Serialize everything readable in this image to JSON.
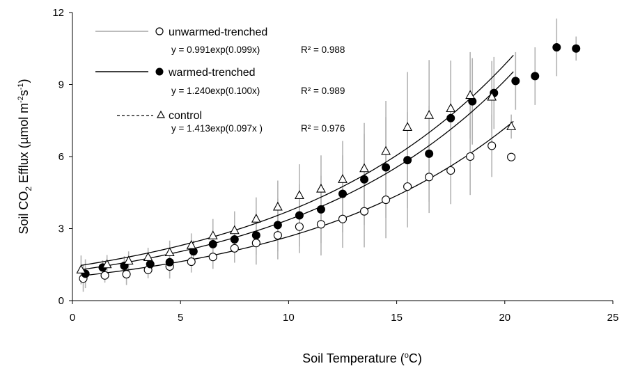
{
  "chart_data": {
    "type": "scatter",
    "xlabel": "Soil Temperature (oC)",
    "xlabel_parts": {
      "pre": "Soil Temperature (",
      "sup": "o",
      "post": "C)"
    },
    "ylabel": "Soil CO2 Efflux (µmol m-2s-1)",
    "ylabel_parts": {
      "pre": "Soil CO",
      "sub": "2",
      "mid": " Efflux (µmol m",
      "sup1": "-2",
      "s": "s",
      "sup2": "-1",
      "post": ")"
    },
    "xlim": [
      0,
      25
    ],
    "ylim": [
      0,
      12
    ],
    "xticks": [
      0,
      5,
      10,
      15,
      20,
      25
    ],
    "yticks": [
      0,
      3,
      6,
      9,
      12
    ],
    "grid": false,
    "legend_position": "top-left",
    "series": [
      {
        "name": "unwarmed-trenched",
        "equation": "y = 0.991exp(0.099x)",
        "r2": "R² = 0.988",
        "marker": "open-circle",
        "legend_line": "gray",
        "fit": {
          "a": 0.991,
          "b": 0.099,
          "xmin": 0.4,
          "xmax": 20.4
        },
        "points": [
          {
            "x": 0.5,
            "y": 0.92,
            "err": 0.55
          },
          {
            "x": 1.5,
            "y": 1.05,
            "err": 0.3
          },
          {
            "x": 2.5,
            "y": 1.1,
            "err": 0.45
          },
          {
            "x": 3.5,
            "y": 1.28,
            "err": 0.35
          },
          {
            "x": 4.5,
            "y": 1.42,
            "err": 0.5
          },
          {
            "x": 5.5,
            "y": 1.62,
            "err": 0.45
          },
          {
            "x": 6.5,
            "y": 1.82,
            "err": 0.5
          },
          {
            "x": 7.5,
            "y": 2.18,
            "err": 0.6
          },
          {
            "x": 8.5,
            "y": 2.4,
            "err": 0.9
          },
          {
            "x": 9.5,
            "y": 2.72,
            "err": 1.0
          },
          {
            "x": 10.5,
            "y": 3.08,
            "err": 1.1
          },
          {
            "x": 11.5,
            "y": 3.18,
            "err": 1.3
          },
          {
            "x": 12.5,
            "y": 3.4,
            "err": 1.2
          },
          {
            "x": 13.5,
            "y": 3.72,
            "err": 1.5
          },
          {
            "x": 14.5,
            "y": 4.2,
            "err": 1.6
          },
          {
            "x": 15.5,
            "y": 4.75,
            "err": 1.7
          },
          {
            "x": 16.5,
            "y": 5.15,
            "err": 1.5
          },
          {
            "x": 17.5,
            "y": 5.42,
            "err": 1.4
          },
          {
            "x": 18.4,
            "y": 6.0,
            "err": 1.6
          },
          {
            "x": 19.4,
            "y": 6.45,
            "err": 1.3
          },
          {
            "x": 20.3,
            "y": 5.98,
            "err": 0.0
          }
        ]
      },
      {
        "name": "warmed-trenched",
        "equation": "y = 1.240exp(0.100x)",
        "r2": "R² = 0.989",
        "marker": "filled-circle",
        "legend_line": "black",
        "fit": {
          "a": 1.24,
          "b": 0.1,
          "xmin": 0.4,
          "xmax": 20.4
        },
        "points": [
          {
            "x": 0.6,
            "y": 1.12,
            "err": 0.6
          },
          {
            "x": 1.4,
            "y": 1.38,
            "err": 0.3
          },
          {
            "x": 2.4,
            "y": 1.45,
            "err": 0.4
          },
          {
            "x": 3.6,
            "y": 1.52,
            "err": 0.35
          },
          {
            "x": 4.5,
            "y": 1.6,
            "err": 0.4
          },
          {
            "x": 5.6,
            "y": 2.05,
            "err": 0.45
          },
          {
            "x": 6.5,
            "y": 2.35,
            "err": 0.5
          },
          {
            "x": 7.5,
            "y": 2.55,
            "err": 0.6
          },
          {
            "x": 8.5,
            "y": 2.72,
            "err": 0.8
          },
          {
            "x": 9.5,
            "y": 3.15,
            "err": 1.1
          },
          {
            "x": 10.5,
            "y": 3.55,
            "err": 1.3
          },
          {
            "x": 11.5,
            "y": 3.8,
            "err": 1.4
          },
          {
            "x": 12.5,
            "y": 4.45,
            "err": 1.6
          },
          {
            "x": 13.5,
            "y": 5.05,
            "err": 1.9
          },
          {
            "x": 14.5,
            "y": 5.55,
            "err": 2.1
          },
          {
            "x": 15.5,
            "y": 5.85,
            "err": 2.0
          },
          {
            "x": 16.5,
            "y": 6.12,
            "err": 2.0
          },
          {
            "x": 17.5,
            "y": 7.6,
            "err": 2.0
          },
          {
            "x": 18.5,
            "y": 8.3,
            "err": 1.8
          },
          {
            "x": 19.5,
            "y": 8.65,
            "err": 1.5
          },
          {
            "x": 20.5,
            "y": 9.15,
            "err": 1.2
          },
          {
            "x": 21.4,
            "y": 9.35,
            "err": 1.2
          },
          {
            "x": 22.4,
            "y": 10.55,
            "err": 1.2
          },
          {
            "x": 23.3,
            "y": 10.5,
            "err": 0.5
          }
        ]
      },
      {
        "name": "control",
        "equation": "y = 1.413exp(0.097x )",
        "r2": "R² = 0.976",
        "marker": "open-triangle",
        "legend_line": "dashed",
        "fit": {
          "a": 1.413,
          "b": 0.097,
          "xmin": 0.4,
          "xmax": 20.4
        },
        "points": [
          {
            "x": 0.4,
            "y": 1.28,
            "err": 0.6
          },
          {
            "x": 1.6,
            "y": 1.5,
            "err": 0.4
          },
          {
            "x": 2.6,
            "y": 1.65,
            "err": 0.4
          },
          {
            "x": 3.5,
            "y": 1.8,
            "err": 0.4
          },
          {
            "x": 4.5,
            "y": 2.0,
            "err": 0.5
          },
          {
            "x": 5.5,
            "y": 2.3,
            "err": 0.5
          },
          {
            "x": 6.5,
            "y": 2.7,
            "err": 0.7
          },
          {
            "x": 7.5,
            "y": 2.92,
            "err": 0.8
          },
          {
            "x": 8.5,
            "y": 3.4,
            "err": 0.9
          },
          {
            "x": 9.5,
            "y": 3.9,
            "err": 1.1
          },
          {
            "x": 10.5,
            "y": 4.38,
            "err": 1.3
          },
          {
            "x": 11.5,
            "y": 4.65,
            "err": 1.4
          },
          {
            "x": 12.5,
            "y": 5.05,
            "err": 1.6
          },
          {
            "x": 13.5,
            "y": 5.5,
            "err": 1.9
          },
          {
            "x": 14.5,
            "y": 6.22,
            "err": 2.1
          },
          {
            "x": 15.5,
            "y": 7.22,
            "err": 2.3
          },
          {
            "x": 16.5,
            "y": 7.72,
            "err": 2.3
          },
          {
            "x": 17.5,
            "y": 8.0,
            "err": 2.0
          },
          {
            "x": 18.4,
            "y": 8.55,
            "err": 1.8
          },
          {
            "x": 19.4,
            "y": 8.48,
            "err": 1.5
          },
          {
            "x": 20.3,
            "y": 7.25,
            "err": 0.5
          }
        ]
      }
    ]
  }
}
